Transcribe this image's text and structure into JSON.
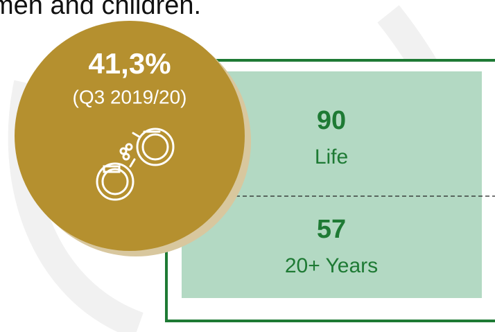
{
  "intro_text": "men and children.",
  "circle": {
    "value": "41,3%",
    "period": "(Q3 2019/20)"
  },
  "box": {
    "items": [
      {
        "value": "90",
        "label": "Life"
      },
      {
        "value": "57",
        "label": "20+ Years"
      }
    ]
  }
}
